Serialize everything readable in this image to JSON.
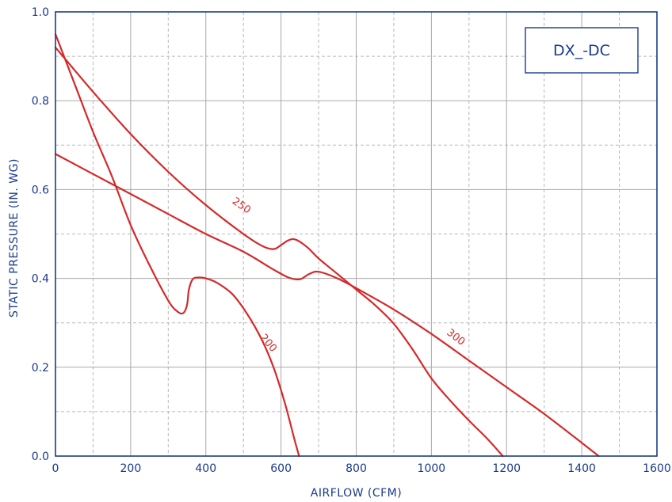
{
  "chart_data": {
    "type": "line",
    "model_label": "DX_-DC",
    "xlabel": "AIRFLOW (CFM)",
    "ylabel": "STATIC PRESSURE (IN. WG)",
    "xlim": [
      0,
      1600
    ],
    "ylim": [
      0,
      1.0
    ],
    "x_ticks": [
      0,
      200,
      400,
      600,
      800,
      1000,
      1200,
      1400,
      1600
    ],
    "y_ticks": [
      0.0,
      0.2,
      0.4,
      0.6,
      0.8,
      1.0
    ],
    "x_tick_labels": [
      "0",
      "200",
      "400",
      "600",
      "800",
      "1000",
      "1200",
      "1400",
      "1600"
    ],
    "y_tick_labels": [
      "0.0",
      "0.2",
      "0.4",
      "0.6",
      "0.8",
      "1.0"
    ],
    "grid": true,
    "colors": {
      "axis": "#1a3a8c",
      "curve": "#d42a2a",
      "grid_major": "#a8a8a8",
      "grid_minor": "#b8b8b8"
    },
    "series": [
      {
        "name": "200",
        "label_at": [
          560,
          0.25
        ],
        "label_angle": 50,
        "points": [
          [
            0,
            0.95
          ],
          [
            50,
            0.84
          ],
          [
            100,
            0.73
          ],
          [
            150,
            0.63
          ],
          [
            200,
            0.52
          ],
          [
            250,
            0.43
          ],
          [
            300,
            0.35
          ],
          [
            325,
            0.325
          ],
          [
            340,
            0.322
          ],
          [
            350,
            0.34
          ],
          [
            355,
            0.375
          ],
          [
            365,
            0.398
          ],
          [
            380,
            0.402
          ],
          [
            400,
            0.4
          ],
          [
            430,
            0.39
          ],
          [
            470,
            0.365
          ],
          [
            510,
            0.32
          ],
          [
            550,
            0.26
          ],
          [
            580,
            0.2
          ],
          [
            610,
            0.12
          ],
          [
            635,
            0.04
          ],
          [
            648,
            0.0
          ]
        ]
      },
      {
        "name": "250",
        "label_at": [
          490,
          0.558
        ],
        "label_angle": 35,
        "points": [
          [
            0,
            0.92
          ],
          [
            100,
            0.82
          ],
          [
            200,
            0.725
          ],
          [
            300,
            0.64
          ],
          [
            400,
            0.565
          ],
          [
            500,
            0.5
          ],
          [
            550,
            0.473
          ],
          [
            580,
            0.466
          ],
          [
            600,
            0.475
          ],
          [
            620,
            0.486
          ],
          [
            640,
            0.487
          ],
          [
            670,
            0.47
          ],
          [
            700,
            0.445
          ],
          [
            750,
            0.41
          ],
          [
            800,
            0.375
          ],
          [
            850,
            0.34
          ],
          [
            900,
            0.298
          ],
          [
            950,
            0.24
          ],
          [
            1000,
            0.175
          ],
          [
            1050,
            0.125
          ],
          [
            1100,
            0.08
          ],
          [
            1150,
            0.038
          ],
          [
            1190,
            0.0
          ]
        ]
      },
      {
        "name": "300",
        "label_at": [
          1060,
          0.262
        ],
        "label_angle": 38,
        "points": [
          [
            0,
            0.68
          ],
          [
            100,
            0.635
          ],
          [
            200,
            0.59
          ],
          [
            300,
            0.545
          ],
          [
            400,
            0.5
          ],
          [
            500,
            0.46
          ],
          [
            580,
            0.42
          ],
          [
            620,
            0.402
          ],
          [
            650,
            0.398
          ],
          [
            675,
            0.41
          ],
          [
            700,
            0.415
          ],
          [
            750,
            0.4
          ],
          [
            800,
            0.378
          ],
          [
            900,
            0.33
          ],
          [
            1000,
            0.275
          ],
          [
            1100,
            0.215
          ],
          [
            1200,
            0.155
          ],
          [
            1300,
            0.095
          ],
          [
            1400,
            0.03
          ],
          [
            1445,
            0.0
          ]
        ]
      }
    ]
  }
}
